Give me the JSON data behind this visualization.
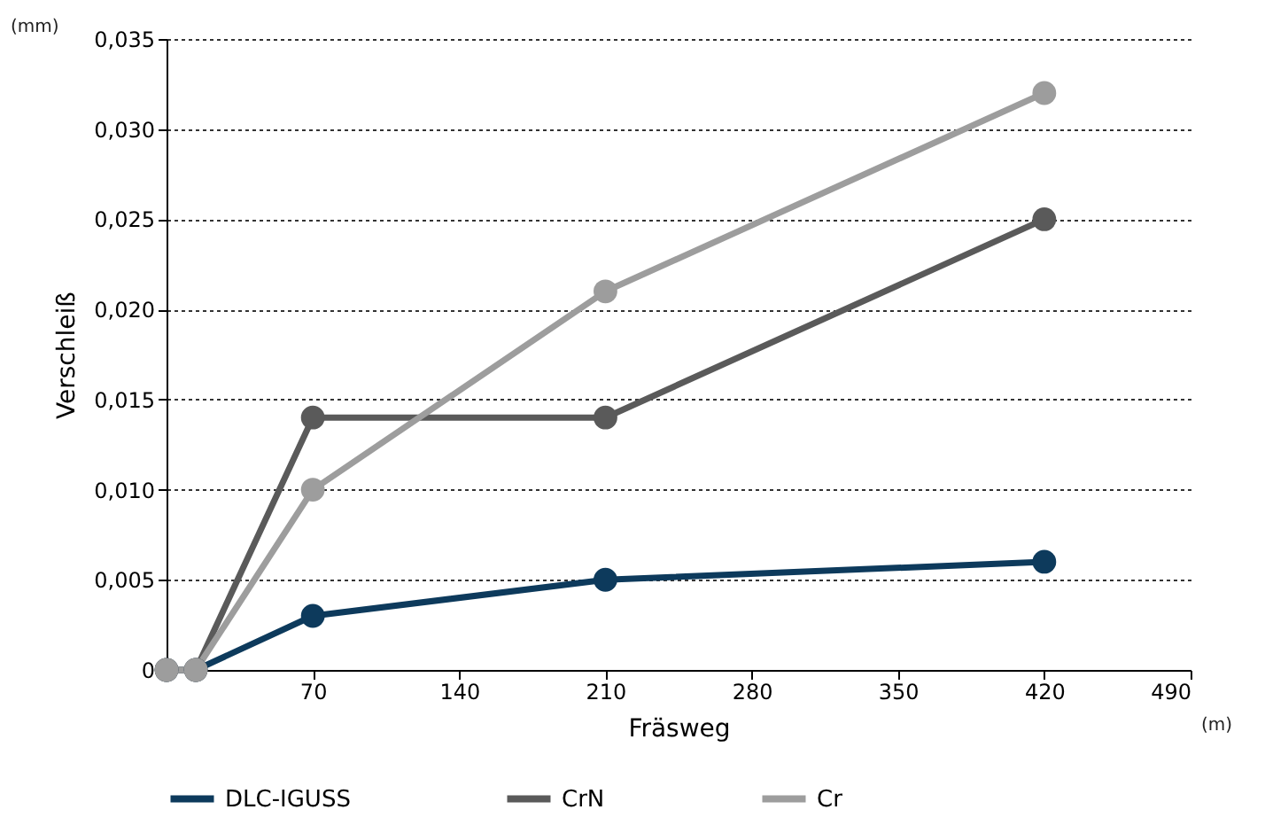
{
  "chart_data": {
    "type": "line",
    "xlabel": "Fräsweg",
    "ylabel": "Verschleiß",
    "annotations": [
      "(mm)",
      "(m)"
    ],
    "x": [
      0,
      14,
      70,
      210,
      420
    ],
    "series": [
      {
        "name": "DLC-IGUSS",
        "color": "#0d3a5c",
        "values": [
          0,
          0,
          0.003,
          0.005,
          0.006
        ]
      },
      {
        "name": "CrN",
        "color": "#5a5a5a",
        "values": [
          0,
          0,
          0.014,
          0.014,
          0.025
        ]
      },
      {
        "name": "Cr",
        "color": "#9d9d9d",
        "values": [
          0,
          0,
          0.01,
          0.021,
          0.032
        ]
      }
    ],
    "xlim": [
      0,
      490
    ],
    "xticks": [
      70,
      140,
      210,
      280,
      350,
      420,
      490
    ],
    "ylim": [
      0,
      0.035
    ],
    "yticks": [
      {
        "value": 0,
        "label": "0"
      },
      {
        "value": 0.005,
        "label": "0,005"
      },
      {
        "value": 0.01,
        "label": "0,010"
      },
      {
        "value": 0.015,
        "label": "0,015"
      },
      {
        "value": 0.02,
        "label": "0,020"
      },
      {
        "value": 0.025,
        "label": "0,025"
      },
      {
        "value": 0.03,
        "label": "0,030"
      },
      {
        "value": 0.035,
        "label": "0,035"
      }
    ],
    "grid": "y",
    "legend": "bottom",
    "marker": "circle",
    "line_style": "solid"
  }
}
